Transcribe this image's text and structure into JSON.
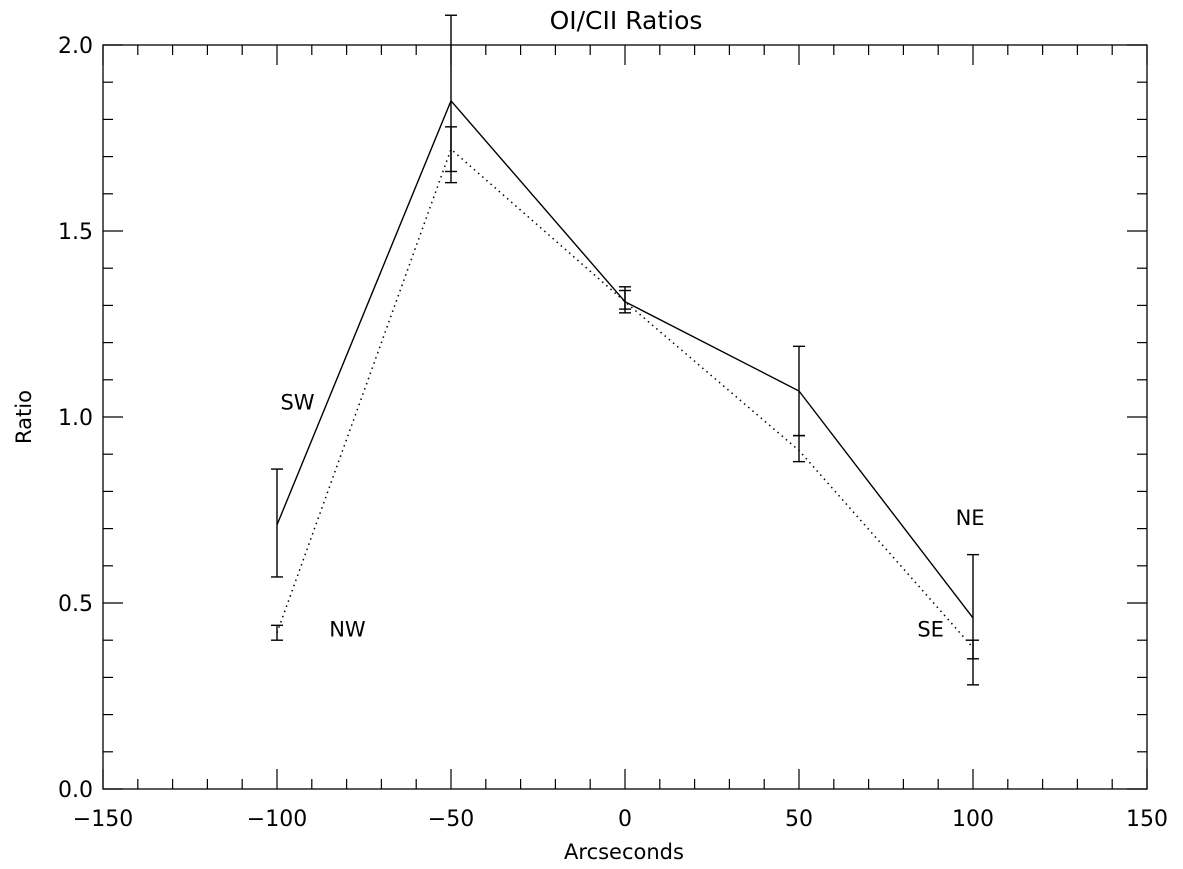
{
  "chart_data": {
    "type": "line",
    "title": "OI/CII Ratios",
    "xlabel": "Arcseconds",
    "ylabel": "Ratio",
    "xlim": [
      -150,
      150
    ],
    "ylim": [
      0.0,
      2.0
    ],
    "x_ticks": [
      -150,
      -100,
      -50,
      0,
      50,
      100,
      150
    ],
    "x_tick_labels": [
      "−150",
      "−100",
      "−50",
      "0",
      "50",
      "100",
      "150"
    ],
    "y_ticks": [
      0.0,
      0.5,
      1.0,
      1.5,
      2.0
    ],
    "y_tick_labels": [
      "0.0",
      "0.5",
      "1.0",
      "1.5",
      "2.0"
    ],
    "grid": false,
    "series": [
      {
        "style": "solid",
        "x": [
          -100,
          -50,
          0,
          50,
          100
        ],
        "y": [
          0.71,
          1.85,
          1.31,
          1.07,
          0.46
        ],
        "err_low": [
          0.57,
          1.63,
          1.28,
          0.95,
          0.28
        ],
        "err_high": [
          0.86,
          2.08,
          1.35,
          1.19,
          0.63
        ]
      },
      {
        "style": "dotted",
        "x": [
          -100,
          -50,
          0,
          50,
          100
        ],
        "y": [
          0.42,
          1.72,
          1.31,
          0.91,
          0.38
        ],
        "err_low": [
          0.4,
          1.66,
          1.29,
          0.88,
          0.35
        ],
        "err_high": [
          0.44,
          1.78,
          1.34,
          0.95,
          0.4
        ]
      }
    ],
    "annotations": [
      {
        "text": "SW",
        "x": -99,
        "y": 1.02
      },
      {
        "text": "NW",
        "x": -85,
        "y": 0.41
      },
      {
        "text": "NE",
        "x": 95,
        "y": 0.71
      },
      {
        "text": "SE",
        "x": 84,
        "y": 0.41
      }
    ],
    "color": "#000000"
  }
}
